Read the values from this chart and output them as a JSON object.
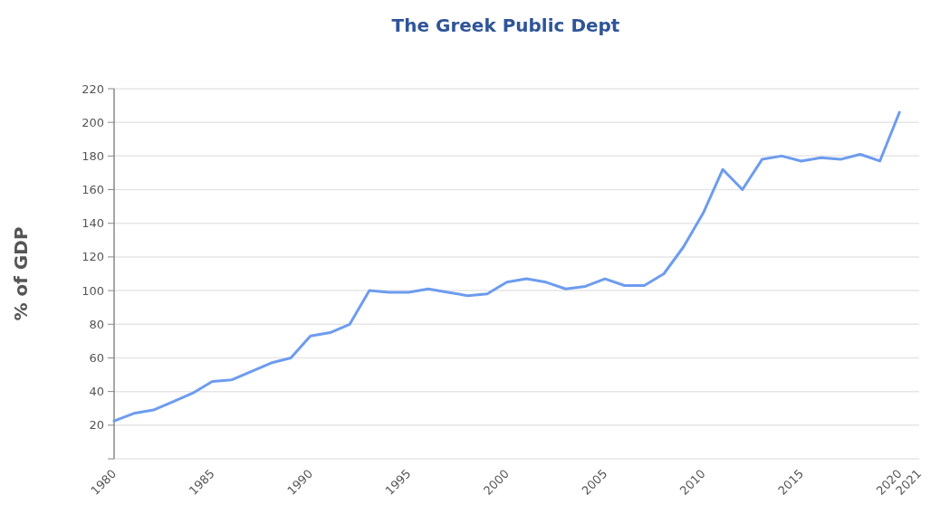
{
  "chart_data": {
    "type": "line",
    "title": "The Greek Public Dept",
    "ylabel": "% of GDP",
    "x": [
      1980,
      1981,
      1982,
      1983,
      1984,
      1985,
      1986,
      1987,
      1988,
      1989,
      1990,
      1991,
      1992,
      1993,
      1994,
      1995,
      1996,
      1997,
      1998,
      1999,
      2000,
      2001,
      2002,
      2003,
      2004,
      2005,
      2006,
      2007,
      2008,
      2009,
      2010,
      2011,
      2012,
      2013,
      2014,
      2015,
      2016,
      2017,
      2018,
      2019,
      2020
    ],
    "series": [
      {
        "color": "#6d9cee",
        "values": [
          22.5,
          27,
          29,
          34,
          39,
          46,
          47,
          52,
          57,
          60,
          73,
          75,
          80,
          100,
          99,
          99,
          101,
          99,
          97,
          98,
          105,
          107,
          105,
          101,
          102.5,
          107,
          103,
          103,
          110,
          126,
          146,
          172,
          160,
          178,
          180,
          177,
          179,
          178,
          181,
          177,
          206
        ]
      }
    ],
    "xlim": [
      1980,
      2021
    ],
    "xticks": [
      1980,
      1985,
      1990,
      1995,
      2000,
      2005,
      2010,
      2015,
      2020,
      2021
    ],
    "ylim": [
      0,
      220
    ],
    "yticks": [
      {
        "value": 0,
        "label": null
      },
      20,
      40,
      60,
      80,
      100,
      120,
      140,
      160,
      180,
      200,
      220
    ],
    "grid": "y",
    "marker": "none",
    "line_style": "solid"
  }
}
